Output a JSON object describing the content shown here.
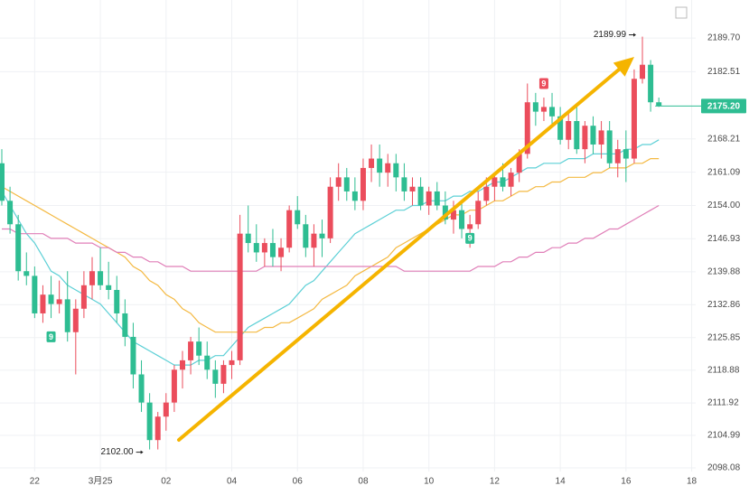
{
  "chart_data": {
    "type": "candlestick",
    "categories": [
      null,
      null,
      null,
      null,
      "22",
      null,
      null,
      null,
      null,
      null,
      null,
      null,
      "3月25",
      null,
      null,
      null,
      null,
      null,
      null,
      null,
      "02",
      null,
      null,
      null,
      null,
      null,
      null,
      null,
      "04",
      null,
      null,
      null,
      null,
      null,
      null,
      null,
      "06",
      null,
      null,
      null,
      null,
      null,
      null,
      null,
      "08",
      null,
      null,
      null,
      null,
      null,
      null,
      null,
      "10",
      null,
      null,
      null,
      null,
      null,
      null,
      null,
      "12",
      null,
      null,
      null,
      null,
      null,
      null,
      null,
      "14",
      null,
      null,
      null,
      null,
      null,
      null,
      null,
      "16",
      null,
      null,
      null,
      null,
      null,
      null,
      null,
      "18"
    ],
    "open": [
      2163,
      2155,
      2150,
      2140,
      2139,
      2131,
      2135,
      2133,
      2134,
      2127,
      2132,
      2137,
      2140,
      2137,
      2136,
      2131,
      2126,
      2118,
      2112,
      2104,
      2109,
      2112,
      2119,
      2121,
      2125,
      2122,
      2119,
      2116,
      2120,
      2121,
      2148,
      2146,
      2144,
      2146,
      2143,
      2145,
      2153,
      2150,
      2145,
      2148,
      2147,
      2158,
      2160,
      2157,
      2155,
      2162,
      2164,
      2161,
      2163,
      2160,
      2157,
      2158,
      2154,
      2157,
      2154,
      2151,
      2153,
      2149,
      2150,
      2155,
      2158,
      2160,
      2158,
      2161,
      2165,
      2176,
      2174,
      2175,
      2173,
      2168,
      2172,
      2166,
      2171,
      2167,
      2170,
      2163,
      2166,
      2164,
      2181,
      2184,
      2176,
      null,
      null,
      null,
      null
    ],
    "high": [
      2166,
      2158,
      2152,
      2144,
      2141,
      2137,
      2139,
      2138,
      2140,
      2134,
      2140,
      2143,
      2145,
      2142,
      2139,
      2134,
      2129,
      2121,
      2114,
      2110,
      2114,
      2120,
      2123,
      2126,
      2128,
      2125,
      2121,
      2121,
      2123,
      2152,
      2154,
      2150,
      2147,
      2149,
      2147,
      2154,
      2156,
      2152,
      2150,
      2151,
      2160,
      2163,
      2162,
      2160,
      2164,
      2167,
      2167,
      2165,
      2165,
      2163,
      2160,
      2160,
      2158,
      2159,
      2157,
      2155,
      2155,
      2152,
      2157,
      2160,
      2161,
      2163,
      2162,
      2166,
      2180,
      2178,
      2177,
      2178,
      2175,
      2174,
      2175,
      2172,
      2173,
      2172,
      2172,
      2168,
      2170,
      2183,
      2189.99,
      2185,
      2177,
      null,
      null,
      null,
      null
    ],
    "low": [
      2154,
      2148,
      2138,
      2137,
      2130,
      2129,
      2130,
      2131,
      2125,
      2118,
      2130,
      2134,
      2136,
      2134,
      2129,
      2124,
      2115,
      2110,
      2102,
      2102,
      2106,
      2110,
      2115,
      2118,
      2120,
      2117,
      2113,
      2114,
      2117,
      2120,
      2144,
      2142,
      2141,
      2141,
      2140,
      2144,
      2149,
      2143,
      2141,
      2143,
      2146,
      2155,
      2155,
      2153,
      2153,
      2159,
      2158,
      2158,
      2157,
      2155,
      2154,
      2153,
      2152,
      2153,
      2150,
      2148,
      2147,
      2145,
      2149,
      2154,
      2155,
      2157,
      2156,
      2159,
      2164,
      2171,
      2172,
      2171,
      2167,
      2166,
      2165,
      2163,
      2165,
      2164,
      2162,
      2160,
      2159,
      2163,
      2180,
      2174,
      2175,
      null,
      null,
      null,
      null
    ],
    "close": [
      2155,
      2150,
      2140,
      2139,
      2131,
      2135,
      2133,
      2134,
      2127,
      2132,
      2137,
      2140,
      2137,
      2136,
      2131,
      2126,
      2118,
      2112,
      2104,
      2109,
      2112,
      2119,
      2121,
      2125,
      2122,
      2119,
      2116,
      2120,
      2121,
      2148,
      2146,
      2144,
      2146,
      2143,
      2145,
      2153,
      2150,
      2145,
      2148,
      2147,
      2158,
      2160,
      2157,
      2155,
      2162,
      2164,
      2161,
      2163,
      2160,
      2157,
      2158,
      2154,
      2157,
      2154,
      2151,
      2153,
      2149,
      2150,
      2155,
      2158,
      2160,
      2158,
      2161,
      2165,
      2176,
      2174,
      2175,
      2173,
      2168,
      2172,
      2166,
      2171,
      2167,
      2170,
      2163,
      2166,
      2164,
      2181,
      2184,
      2176,
      2175.2,
      null,
      null,
      null,
      null
    ],
    "up_color": "#eb4d5c",
    "down_color": "#2ebd92",
    "ma_lines": [
      {
        "color": "#5dd0d6",
        "values": [
          2157,
          2154,
          2151,
          2148,
          2146,
          2143,
          2140,
          2139,
          2137,
          2136,
          2135,
          2134,
          2133,
          2131,
          2129,
          2127,
          2125,
          2124,
          2123,
          2122,
          2121,
          2120,
          2120,
          2120,
          2121,
          2121,
          2122,
          2122,
          2124,
          2126,
          2128,
          2129,
          2130,
          2131,
          2132,
          2133,
          2135,
          2137,
          2138,
          2140,
          2142,
          2144,
          2146,
          2148,
          2149,
          2150,
          2151,
          2152,
          2153,
          2153,
          2154,
          2154,
          2155,
          2155,
          2155,
          2156,
          2156,
          2157,
          2157,
          2158,
          2159,
          2159,
          2160,
          2161,
          2162,
          2162,
          2163,
          2163,
          2163,
          2164,
          2164,
          2164,
          2165,
          2165,
          2165,
          2165,
          2166,
          2166,
          2167,
          2167,
          2168,
          null,
          null,
          null,
          null
        ]
      },
      {
        "color": "#f4b942",
        "values": [
          2158,
          2157,
          2156,
          2155,
          2154,
          2153,
          2152,
          2151,
          2150,
          2149,
          2148,
          2147,
          2146,
          2145,
          2144,
          2143,
          2141,
          2140,
          2138,
          2137,
          2135,
          2134,
          2132,
          2131,
          2129,
          2128,
          2127,
          2127,
          2127,
          2127,
          2127,
          2127,
          2128,
          2128,
          2129,
          2129,
          2130,
          2131,
          2132,
          2134,
          2135,
          2136,
          2137,
          2139,
          2140,
          2141,
          2142,
          2143,
          2145,
          2146,
          2147,
          2148,
          2149,
          2150,
          2151,
          2152,
          2152,
          2153,
          2153,
          2154,
          2155,
          2155,
          2156,
          2157,
          2157,
          2158,
          2158,
          2159,
          2159,
          2160,
          2160,
          2160,
          2161,
          2161,
          2162,
          2162,
          2162,
          2163,
          2163,
          2164,
          2164,
          null,
          null,
          null,
          null
        ]
      },
      {
        "color": "#e07fb8",
        "values": [
          2149,
          2149,
          2148,
          2148,
          2148,
          2148,
          2147,
          2147,
          2147,
          2146,
          2146,
          2146,
          2145,
          2145,
          2144,
          2144,
          2143,
          2143,
          2142,
          2142,
          2141,
          2141,
          2141,
          2140,
          2140,
          2140,
          2140,
          2140,
          2140,
          2140,
          2140,
          2140,
          2141,
          2141,
          2141,
          2141,
          2141,
          2141,
          2141,
          2141,
          2141,
          2141,
          2141,
          2141,
          2141,
          2141,
          2141,
          2141,
          2141,
          2140,
          2140,
          2140,
          2140,
          2140,
          2140,
          2140,
          2140,
          2140,
          2141,
          2141,
          2141,
          2142,
          2142,
          2143,
          2143,
          2144,
          2144,
          2145,
          2145,
          2146,
          2146,
          2147,
          2147,
          2148,
          2149,
          2149,
          2150,
          2151,
          2152,
          2153,
          2154,
          null,
          null,
          null,
          null
        ]
      }
    ],
    "ylim": [
      2097.3,
      2197.8
    ],
    "yticks": [
      {
        "value": 2189.7,
        "label": "2189.70"
      },
      2182.51,
      2168.21,
      2161.09,
      {
        "value": 2154,
        "label": "2154.00"
      },
      2146.93,
      2139.88,
      2132.86,
      2125.85,
      2118.88,
      2111.92,
      2104.99,
      2098.08
    ],
    "grid": true,
    "last_price": {
      "value": 2175.2,
      "label": "2175.20",
      "color": "#2ebd92"
    },
    "annotations": [
      {
        "at": 78,
        "value": 2189.99,
        "label": "2189.99"
      },
      {
        "at": 18,
        "value": 2102,
        "label": "2102.00"
      }
    ],
    "markers": [
      {
        "at": 6,
        "value": 2126,
        "label": "9",
        "color": "#2ebd92"
      },
      {
        "at": 57,
        "value": 2147,
        "label": "9",
        "color": "#2ebd92"
      },
      {
        "at": 66,
        "value": 2180,
        "label": "9",
        "color": "#eb4d5c"
      }
    ]
  }
}
